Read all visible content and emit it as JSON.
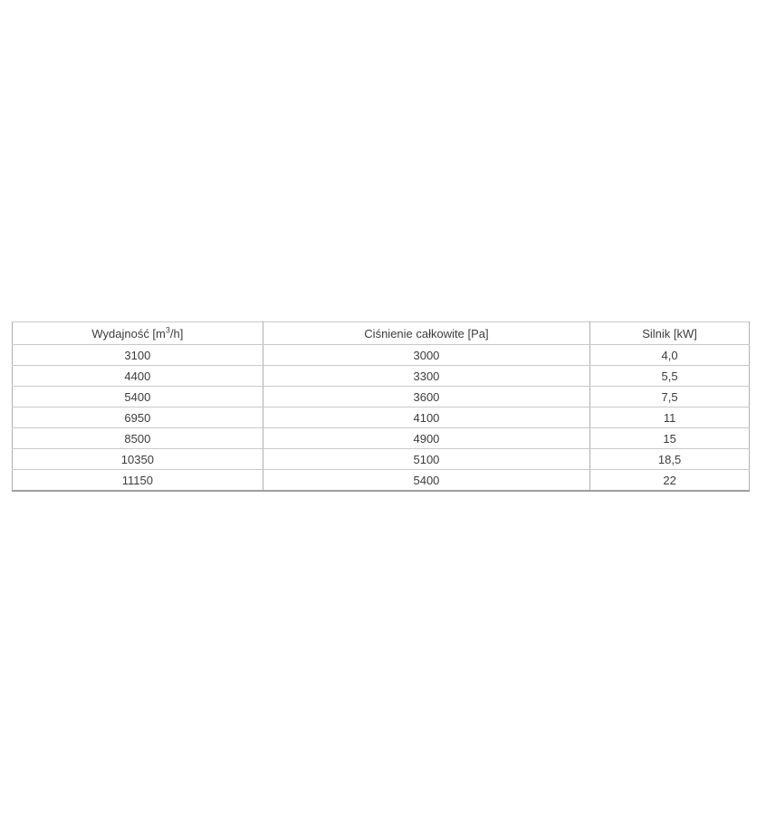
{
  "page": {
    "background_color": "#ffffff"
  },
  "table": {
    "text_color": "#3c3c3c",
    "outer_border_color": "#9e9e9e",
    "inner_border_color": "#c9c9c9",
    "headers": [
      {
        "pre": "Wydajność [m",
        "sup": "3",
        "post": "/h]"
      },
      {
        "pre": "Ciśnienie całkowite [Pa]",
        "sup": "",
        "post": ""
      },
      {
        "pre": "Silnik [kW]",
        "sup": "",
        "post": ""
      }
    ],
    "rows": [
      [
        "3100",
        "3000",
        "4,0"
      ],
      [
        "4400",
        "3300",
        "5,5"
      ],
      [
        "5400",
        "3600",
        "7,5"
      ],
      [
        "6950",
        "4100",
        "11"
      ],
      [
        "8500",
        "4900",
        "15"
      ],
      [
        "10350",
        "5100",
        "18,5"
      ],
      [
        "11150",
        "5400",
        "22"
      ]
    ]
  }
}
